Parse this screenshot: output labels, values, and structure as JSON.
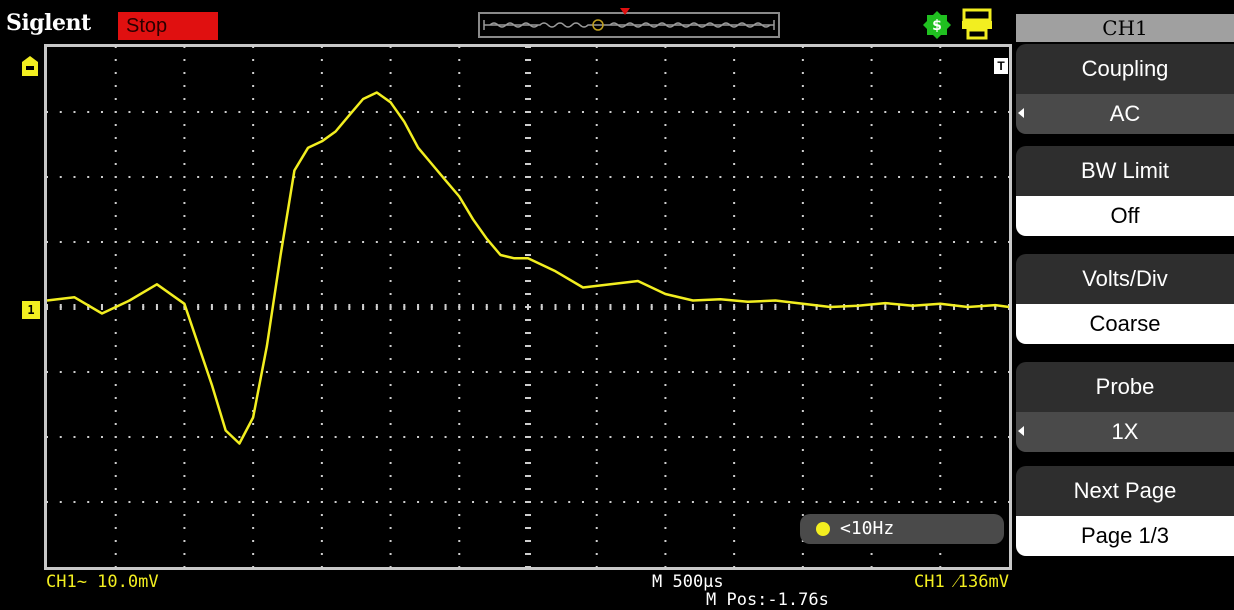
{
  "header": {
    "brand": "Siglent",
    "run_status": "Stop"
  },
  "menu": {
    "title": "CH1",
    "items": [
      {
        "label": "Coupling",
        "value": "AC",
        "style": "dark",
        "cycle": true
      },
      {
        "label": "BW Limit",
        "value": "Off",
        "style": "light",
        "cycle": false
      },
      {
        "label": "Volts/Div",
        "value": "Coarse",
        "style": "light",
        "cycle": false
      },
      {
        "label": "Probe",
        "value": "1X",
        "style": "dark",
        "cycle": true
      },
      {
        "label": "Next Page",
        "value": "Page 1/3",
        "style": "light",
        "cycle": false
      }
    ]
  },
  "markers": {
    "channel": "1",
    "trigger_t": "T"
  },
  "readouts": {
    "frequency": "<10Hz",
    "ch1_scale": "CH1~ 10.0mV",
    "time_scale": "M 500μs",
    "m_pos": "M Pos:-1.76s",
    "trigger": "CH1 ⁄136mV"
  },
  "colors": {
    "trace": "#f2ee20",
    "grid_dots": "#cfcfcf",
    "stop_badge": "#e01010",
    "usb_icon": "#20c020",
    "printer_icon": "#f2ee20"
  },
  "chart_data": {
    "type": "line",
    "title": "",
    "xlabel": "",
    "ylabel": "",
    "x_divisions": 14,
    "y_divisions": 8,
    "xlim": [
      -7,
      7
    ],
    "ylim": [
      -4,
      4
    ],
    "x_unit": "div",
    "y_unit": "div",
    "series": [
      {
        "x": [
          -7.0,
          -6.6,
          -6.2,
          -5.8,
          -5.4,
          -5.0,
          -4.6,
          -4.4,
          -4.2,
          -4.0,
          -3.8,
          -3.6,
          -3.4,
          -3.2,
          -3.0,
          -2.8,
          -2.6,
          -2.4,
          -2.2,
          -2.0,
          -1.8,
          -1.6,
          -1.4,
          -1.2,
          -1.0,
          -0.8,
          -0.6,
          -0.4,
          -0.2,
          0.0,
          0.4,
          0.8,
          1.2,
          1.6,
          2.0,
          2.4,
          2.8,
          3.2,
          3.6,
          4.0,
          4.4,
          4.8,
          5.2,
          5.6,
          6.0,
          6.4,
          6.8,
          7.0
        ],
        "values": [
          0.1,
          0.15,
          -0.1,
          0.1,
          0.35,
          0.05,
          -1.2,
          -1.9,
          -2.1,
          -1.7,
          -0.6,
          0.8,
          2.1,
          2.45,
          2.55,
          2.7,
          2.95,
          3.2,
          3.3,
          3.15,
          2.85,
          2.45,
          2.2,
          1.95,
          1.7,
          1.35,
          1.05,
          0.8,
          0.75,
          0.75,
          0.55,
          0.3,
          0.35,
          0.4,
          0.2,
          0.1,
          0.12,
          0.08,
          0.1,
          0.05,
          0.0,
          0.02,
          0.06,
          0.02,
          0.05,
          0.0,
          0.03,
          0.0
        ]
      }
    ],
    "grid": true,
    "grid_style": "dotted"
  }
}
